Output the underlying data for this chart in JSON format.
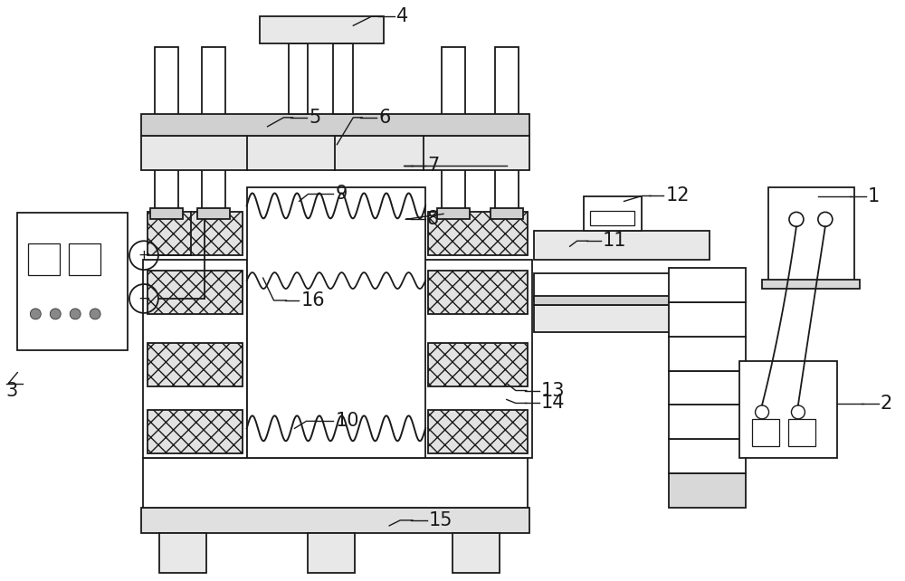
{
  "bg": "#ffffff",
  "lc": "#1a1a1a",
  "lw": 1.3,
  "hatch_fc": "#e0e0e0",
  "gray_fc": "#d0d0d0",
  "white_fc": "#ffffff"
}
